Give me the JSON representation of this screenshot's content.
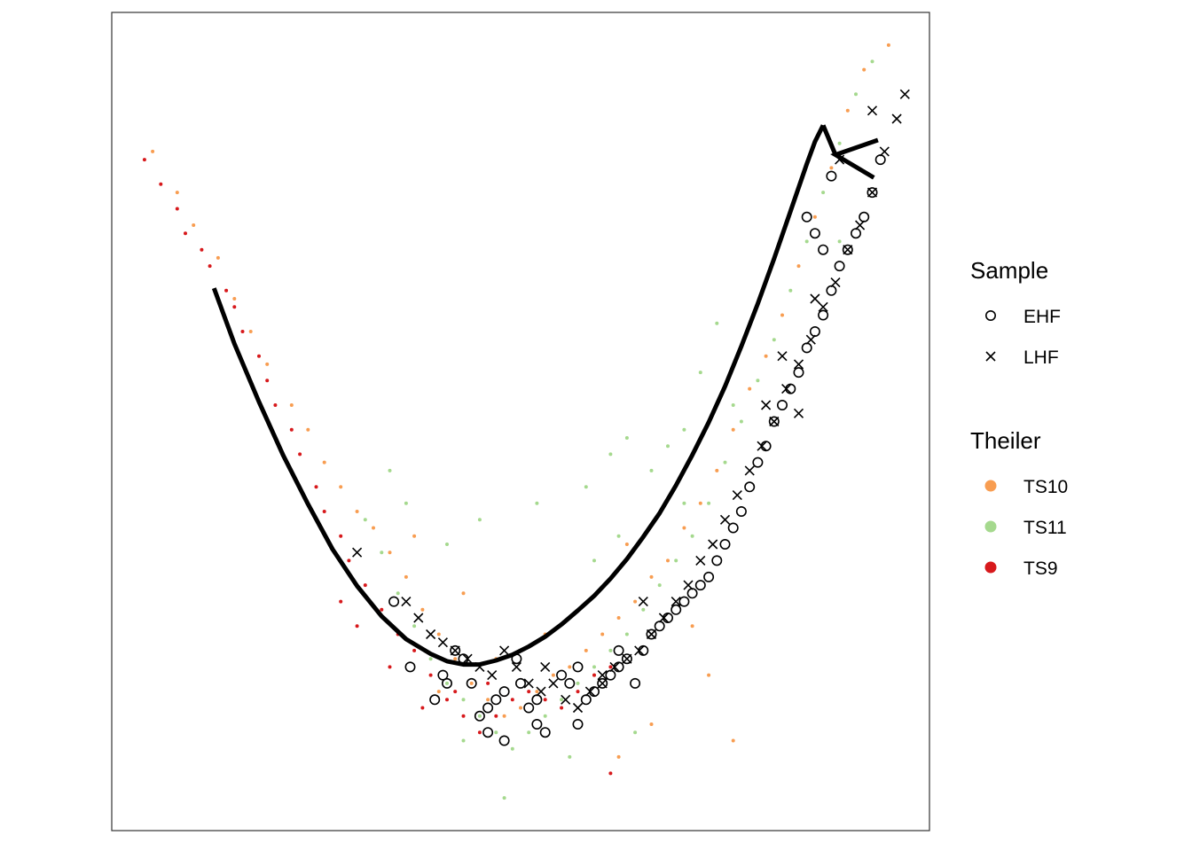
{
  "chart_data": {
    "type": "scatter",
    "title": "",
    "xlabel": "",
    "ylabel": "",
    "axes_shown": false,
    "grid": false,
    "legend_position": "right",
    "xlim": [
      0,
      100
    ],
    "ylim": [
      0,
      100
    ],
    "legends": [
      {
        "title": "Sample",
        "entries": [
          {
            "label": "EHF",
            "shape": "open-circle"
          },
          {
            "label": "LHF",
            "shape": "cross"
          }
        ]
      },
      {
        "title": "Theiler",
        "entries": [
          {
            "label": "TS10",
            "color": "#F89D51"
          },
          {
            "label": "TS11",
            "color": "#A5D98E"
          },
          {
            "label": "TS9",
            "color": "#D7191C"
          }
        ]
      }
    ],
    "background_series": [
      {
        "name": "TS10",
        "color": "#F89D51",
        "points": [
          [
            5,
            83
          ],
          [
            8,
            78
          ],
          [
            10,
            74
          ],
          [
            13,
            70
          ],
          [
            15,
            65
          ],
          [
            17,
            61
          ],
          [
            19,
            57
          ],
          [
            22,
            52
          ],
          [
            24,
            49
          ],
          [
            26,
            45
          ],
          [
            28,
            42
          ],
          [
            30,
            39
          ],
          [
            32,
            37
          ],
          [
            34,
            34
          ],
          [
            36,
            31
          ],
          [
            38,
            27
          ],
          [
            40,
            24
          ],
          [
            42,
            21
          ],
          [
            44,
            18
          ],
          [
            46,
            16
          ],
          [
            48,
            14
          ],
          [
            50,
            15
          ],
          [
            52,
            17
          ],
          [
            54,
            19
          ],
          [
            56,
            20
          ],
          [
            58,
            22
          ],
          [
            60,
            24
          ],
          [
            62,
            26
          ],
          [
            64,
            28
          ],
          [
            66,
            31
          ],
          [
            68,
            33
          ],
          [
            70,
            37
          ],
          [
            72,
            40
          ],
          [
            74,
            44
          ],
          [
            76,
            49
          ],
          [
            78,
            54
          ],
          [
            80,
            58
          ],
          [
            82,
            63
          ],
          [
            84,
            69
          ],
          [
            86,
            75
          ],
          [
            88,
            81
          ],
          [
            90,
            88
          ],
          [
            92,
            93
          ],
          [
            95,
            96
          ],
          [
            37,
            36
          ],
          [
            43,
            29
          ],
          [
            47,
            21
          ],
          [
            53,
            24
          ],
          [
            59,
            19
          ],
          [
            63,
            35
          ],
          [
            66,
            13
          ],
          [
            71,
            25
          ],
          [
            73,
            19
          ],
          [
            76,
            11
          ],
          [
            62,
            9
          ],
          [
            40,
            17
          ]
        ]
      },
      {
        "name": "TS11",
        "color": "#A5D98E",
        "points": [
          [
            31,
            38
          ],
          [
            33,
            34
          ],
          [
            35,
            29
          ],
          [
            37,
            25
          ],
          [
            39,
            21
          ],
          [
            41,
            18
          ],
          [
            43,
            16
          ],
          [
            45,
            14
          ],
          [
            47,
            12
          ],
          [
            49,
            10
          ],
          [
            51,
            12
          ],
          [
            53,
            14
          ],
          [
            55,
            16
          ],
          [
            57,
            18
          ],
          [
            59,
            20
          ],
          [
            61,
            22
          ],
          [
            63,
            24
          ],
          [
            65,
            27
          ],
          [
            67,
            30
          ],
          [
            69,
            33
          ],
          [
            71,
            36
          ],
          [
            73,
            40
          ],
          [
            75,
            45
          ],
          [
            77,
            50
          ],
          [
            79,
            55
          ],
          [
            81,
            60
          ],
          [
            83,
            66
          ],
          [
            85,
            72
          ],
          [
            87,
            78
          ],
          [
            89,
            84
          ],
          [
            91,
            90
          ],
          [
            93,
            94
          ],
          [
            34,
            44
          ],
          [
            36,
            40
          ],
          [
            41,
            35
          ],
          [
            45,
            38
          ],
          [
            52,
            40
          ],
          [
            58,
            42
          ],
          [
            61,
            46
          ],
          [
            63,
            48
          ],
          [
            66,
            44
          ],
          [
            68,
            47
          ],
          [
            70,
            49
          ],
          [
            62,
            36
          ],
          [
            59,
            33
          ],
          [
            64,
            12
          ],
          [
            56,
            9
          ],
          [
            43,
            11
          ],
          [
            48,
            4
          ],
          [
            70,
            40
          ],
          [
            72,
            56
          ],
          [
            74,
            62
          ],
          [
            76,
            52
          ],
          [
            89,
            72
          ]
        ]
      },
      {
        "name": "TS9",
        "color": "#D7191C",
        "points": [
          [
            4,
            82
          ],
          [
            6,
            79
          ],
          [
            8,
            76
          ],
          [
            9,
            73
          ],
          [
            11,
            71
          ],
          [
            12,
            69
          ],
          [
            14,
            66
          ],
          [
            15,
            64
          ],
          [
            16,
            61
          ],
          [
            18,
            58
          ],
          [
            19,
            55
          ],
          [
            20,
            52
          ],
          [
            22,
            49
          ],
          [
            23,
            46
          ],
          [
            25,
            42
          ],
          [
            26,
            39
          ],
          [
            28,
            36
          ],
          [
            29,
            33
          ],
          [
            31,
            30
          ],
          [
            33,
            27
          ],
          [
            35,
            24
          ],
          [
            37,
            22
          ],
          [
            39,
            19
          ],
          [
            41,
            16
          ],
          [
            43,
            14
          ],
          [
            45,
            12
          ],
          [
            47,
            14
          ],
          [
            49,
            16
          ],
          [
            51,
            17
          ],
          [
            53,
            16
          ],
          [
            55,
            15
          ],
          [
            57,
            17
          ],
          [
            59,
            19
          ],
          [
            61,
            20
          ],
          [
            61,
            7
          ],
          [
            28,
            28
          ],
          [
            30,
            25
          ],
          [
            34,
            20
          ],
          [
            38,
            15
          ],
          [
            42,
            17
          ],
          [
            46,
            18
          ]
        ]
      }
    ],
    "ehf_points": [
      [
        34.5,
        28
      ],
      [
        36.5,
        20
      ],
      [
        39.5,
        16
      ],
      [
        40.5,
        19
      ],
      [
        41,
        18
      ],
      [
        42,
        22
      ],
      [
        43,
        21
      ],
      [
        45,
        14
      ],
      [
        46,
        15
      ],
      [
        47,
        16
      ],
      [
        48,
        17
      ],
      [
        49.5,
        21
      ],
      [
        50,
        18
      ],
      [
        51,
        15
      ],
      [
        52,
        13
      ],
      [
        53,
        12
      ],
      [
        55,
        19
      ],
      [
        56,
        18
      ],
      [
        57,
        13
      ],
      [
        58,
        16
      ],
      [
        59,
        17
      ],
      [
        60,
        18
      ],
      [
        61,
        19
      ],
      [
        62,
        20
      ],
      [
        63,
        21
      ],
      [
        64,
        18
      ],
      [
        65,
        22
      ],
      [
        66,
        24
      ],
      [
        67,
        25
      ],
      [
        68,
        26
      ],
      [
        69,
        27
      ],
      [
        70,
        28
      ],
      [
        71,
        29
      ],
      [
        72,
        30
      ],
      [
        73,
        31
      ],
      [
        74,
        33
      ],
      [
        75,
        35
      ],
      [
        76,
        37
      ],
      [
        77,
        39
      ],
      [
        78,
        42
      ],
      [
        79,
        45
      ],
      [
        80,
        47
      ],
      [
        81,
        50
      ],
      [
        82,
        52
      ],
      [
        83,
        54
      ],
      [
        84,
        56
      ],
      [
        85,
        59
      ],
      [
        86,
        61
      ],
      [
        87,
        63
      ],
      [
        88,
        66
      ],
      [
        89,
        69
      ],
      [
        90,
        71
      ],
      [
        91,
        73
      ],
      [
        92,
        75
      ],
      [
        93,
        78
      ],
      [
        94,
        82
      ],
      [
        85,
        75
      ],
      [
        88,
        80
      ],
      [
        86,
        73
      ],
      [
        87,
        71
      ],
      [
        52,
        16
      ],
      [
        44,
        18
      ],
      [
        48,
        11
      ],
      [
        46,
        12
      ],
      [
        62,
        22
      ],
      [
        57,
        20
      ]
    ],
    "lhf_points": [
      [
        30,
        34
      ],
      [
        36,
        28
      ],
      [
        37.5,
        26
      ],
      [
        39,
        24
      ],
      [
        40.5,
        23
      ],
      [
        42,
        22
      ],
      [
        43.5,
        21
      ],
      [
        45,
        20
      ],
      [
        46.5,
        19
      ],
      [
        48,
        22
      ],
      [
        49.5,
        20
      ],
      [
        51,
        18
      ],
      [
        52.5,
        17
      ],
      [
        54,
        18
      ],
      [
        55.5,
        16
      ],
      [
        57,
        15
      ],
      [
        58.5,
        17
      ],
      [
        60,
        18
      ],
      [
        61.5,
        20
      ],
      [
        63,
        21
      ],
      [
        64.5,
        22
      ],
      [
        66,
        24
      ],
      [
        67.5,
        26
      ],
      [
        69,
        28
      ],
      [
        70.5,
        30
      ],
      [
        72,
        33
      ],
      [
        73.5,
        35
      ],
      [
        75,
        38
      ],
      [
        76.5,
        41
      ],
      [
        78,
        44
      ],
      [
        79.5,
        47
      ],
      [
        81,
        50
      ],
      [
        82.5,
        54
      ],
      [
        84,
        57
      ],
      [
        85.5,
        60
      ],
      [
        87,
        64
      ],
      [
        88.5,
        67
      ],
      [
        90,
        71
      ],
      [
        91.5,
        74
      ],
      [
        93,
        78
      ],
      [
        94.5,
        83
      ],
      [
        96,
        87
      ],
      [
        97,
        90
      ],
      [
        80,
        52
      ],
      [
        82,
        58
      ],
      [
        84,
        51
      ],
      [
        86,
        65
      ],
      [
        89,
        82
      ],
      [
        93,
        88
      ],
      [
        65,
        28
      ],
      [
        60,
        19
      ],
      [
        53,
        20
      ]
    ],
    "principal_curve": {
      "color": "#000000",
      "points": [
        [
          12.5,
          66.3
        ],
        [
          15,
          59.5
        ],
        [
          18,
          52.4
        ],
        [
          21,
          45.8
        ],
        [
          24,
          39.9
        ],
        [
          27,
          34.4
        ],
        [
          30,
          29.9
        ],
        [
          33,
          26.2
        ],
        [
          36,
          23.4
        ],
        [
          39,
          21.6
        ],
        [
          41,
          20.7
        ],
        [
          43,
          20.3
        ],
        [
          45,
          20.3
        ],
        [
          47,
          20.8
        ],
        [
          49,
          21.5
        ],
        [
          51,
          22.5
        ],
        [
          53,
          23.7
        ],
        [
          55,
          25.2
        ],
        [
          57,
          26.9
        ],
        [
          59,
          28.7
        ],
        [
          61,
          30.8
        ],
        [
          63,
          33.2
        ],
        [
          65,
          35.9
        ],
        [
          67,
          38.8
        ],
        [
          69,
          42.2
        ],
        [
          71,
          45.9
        ],
        [
          73,
          49.9
        ],
        [
          75,
          54.3
        ],
        [
          77,
          59.2
        ],
        [
          79,
          64.4
        ],
        [
          81,
          69.9
        ],
        [
          83,
          75.7
        ],
        [
          85,
          81.5
        ],
        [
          86,
          84.2
        ],
        [
          87,
          86.2
        ]
      ],
      "arrow_tip": [
        88.5,
        82.6
      ],
      "arrow_barbs": [
        [
          93.7,
          84.4
        ],
        [
          93.2,
          79.8
        ]
      ]
    }
  }
}
